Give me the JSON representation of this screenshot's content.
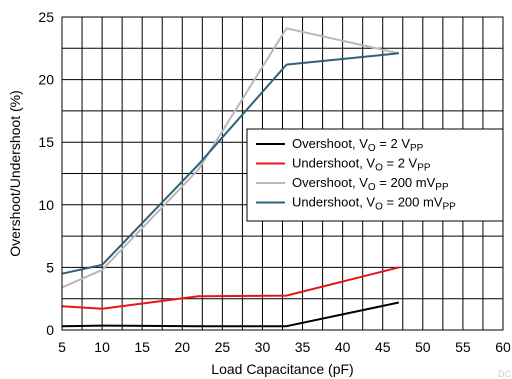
{
  "chart_data": {
    "type": "line",
    "title": "",
    "xlabel": "Load Capacitance (pF)",
    "ylabel": "Overshoot/Undershoot (%)",
    "xlim": [
      5,
      60
    ],
    "ylim": [
      0,
      25
    ],
    "xticks": [
      5,
      10,
      15,
      20,
      25,
      30,
      35,
      40,
      45,
      50,
      55,
      60
    ],
    "yticks": [
      0,
      5,
      10,
      15,
      20,
      25
    ],
    "grid": true,
    "legend_placement": "right",
    "watermark": "DC",
    "series": [
      {
        "label_main": "Overshoot, V",
        "label_sub": "O",
        "label_mid": " = 2 V",
        "label_sub2": "PP",
        "color": "#000000",
        "points": [
          [
            5,
            0.3
          ],
          [
            10,
            0.35
          ],
          [
            22,
            0.3
          ],
          [
            33,
            0.3
          ],
          [
            47,
            2.2
          ]
        ]
      },
      {
        "label_main": "Undershoot, V",
        "label_sub": "O",
        "label_mid": " = 2 V",
        "label_sub2": "PP",
        "color": "#e8141b",
        "points": [
          [
            5,
            1.9
          ],
          [
            10,
            1.7
          ],
          [
            22,
            2.7
          ],
          [
            33,
            2.75
          ],
          [
            47,
            5.0
          ]
        ]
      },
      {
        "label_main": "Overshoot, V",
        "label_sub": "O",
        "label_mid": " = 200 mV",
        "label_sub2": "PP",
        "color": "#b9b9b9",
        "points": [
          [
            5,
            3.4
          ],
          [
            10,
            4.8
          ],
          [
            22,
            12.8
          ],
          [
            33,
            24.1
          ],
          [
            47,
            22.1
          ]
        ]
      },
      {
        "label_main": "Undershoot, V",
        "label_sub": "O",
        "label_mid": " = 200 mV",
        "label_sub2": "PP",
        "color": "#2f5f7a",
        "points": [
          [
            5,
            4.5
          ],
          [
            10,
            5.2
          ],
          [
            22,
            13.2
          ],
          [
            33,
            21.2
          ],
          [
            47,
            22.1
          ]
        ]
      }
    ]
  }
}
